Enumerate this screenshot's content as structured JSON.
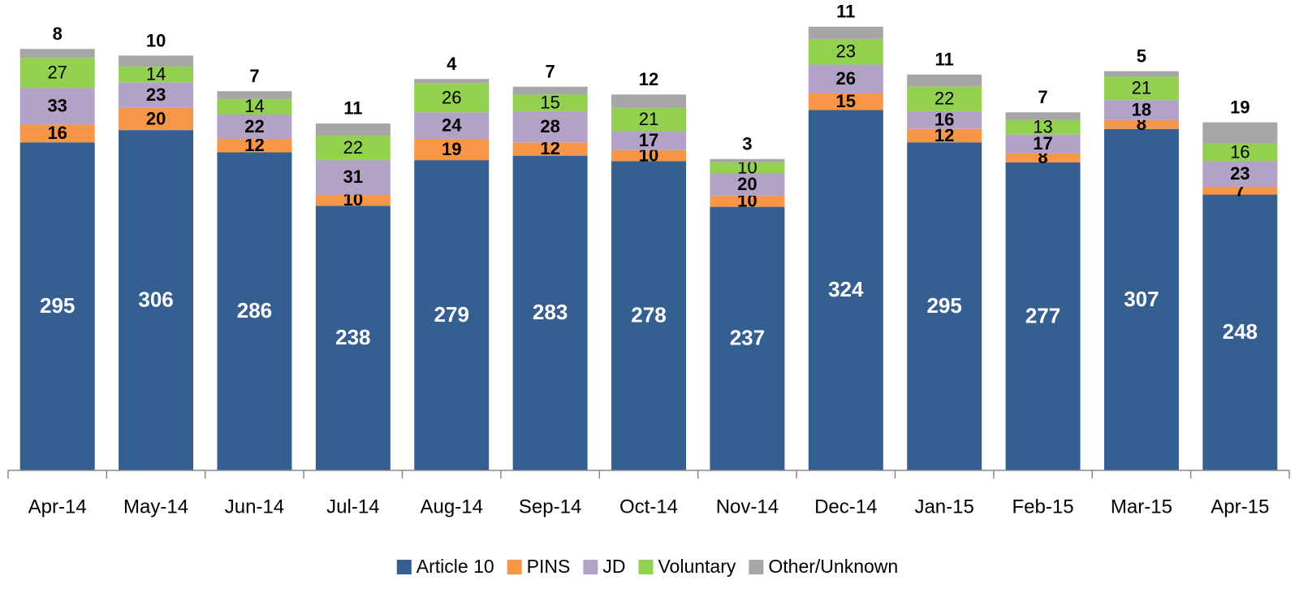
{
  "chart_data": {
    "type": "stacked_bar",
    "categories": [
      "Apr-14",
      "May-14",
      "Jun-14",
      "Jul-14",
      "Aug-14",
      "Sep-14",
      "Oct-14",
      "Nov-14",
      "Dec-14",
      "Jan-15",
      "Feb-15",
      "Mar-15",
      "Apr-15"
    ],
    "series": [
      {
        "name": "Article 10",
        "color": "#355f91",
        "values": [
          295,
          306,
          286,
          238,
          279,
          283,
          278,
          237,
          324,
          295,
          277,
          307,
          248
        ]
      },
      {
        "name": "PINS",
        "color": "#f79646",
        "values": [
          16,
          20,
          12,
          10,
          19,
          12,
          10,
          10,
          15,
          12,
          8,
          8,
          7
        ]
      },
      {
        "name": "JD",
        "color": "#b3a2c7",
        "values": [
          33,
          23,
          22,
          31,
          24,
          28,
          17,
          20,
          26,
          16,
          17,
          18,
          23
        ]
      },
      {
        "name": "Voluntary",
        "color": "#92d050",
        "values": [
          27,
          14,
          14,
          22,
          26,
          15,
          21,
          10,
          23,
          22,
          13,
          21,
          16
        ]
      },
      {
        "name": "Other/Unknown",
        "color": "#a6a6a6",
        "values": [
          8,
          10,
          7,
          11,
          4,
          7,
          12,
          3,
          11,
          11,
          7,
          5,
          19
        ]
      }
    ],
    "ylim": [
      0,
      423
    ],
    "legend": "bottom"
  }
}
